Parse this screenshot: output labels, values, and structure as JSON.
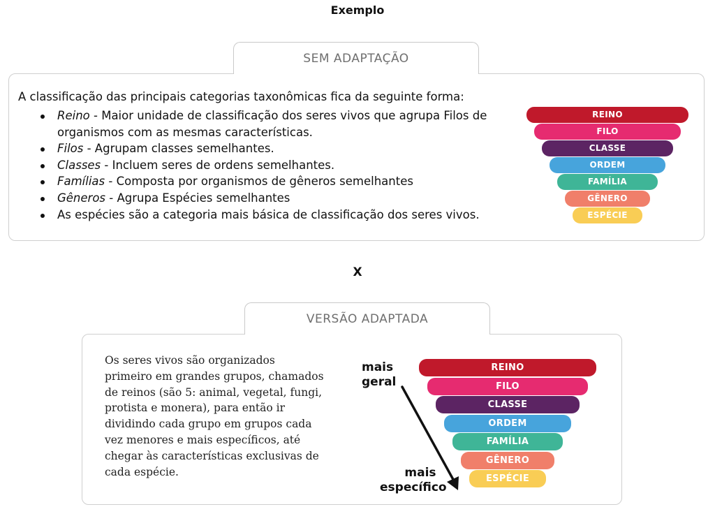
{
  "header": {
    "title": "Exemplo"
  },
  "original": {
    "tab_label": "SEM ADAPTAÇÃO",
    "intro": "A classificação das principais categorias taxonômicas fica da seguinte forma:",
    "items": [
      {
        "term": "Reino",
        "text": " - Maior unidade de classificação dos seres vivos que agrupa Filos de organismos com as mesmas características."
      },
      {
        "term": "Filos",
        "text": " - Agrupam classes semelhantes."
      },
      {
        "term": "Classes",
        "text": " - Incluem seres de ordens semelhantes."
      },
      {
        "term": "Famílias",
        "text": " - Composta por organismos de gêneros semelhantes"
      },
      {
        "term": "Gêneros",
        "text": " - Agrupa Espécies semelhantes"
      },
      {
        "term": "",
        "text": "As espécies são a categoria mais básica de classificação dos seres vivos."
      }
    ]
  },
  "separator": "X",
  "adapted": {
    "tab_label": "VERSÃO ADAPTADA",
    "description": "Os seres vivos são organizados primeiro em grandes grupos, chamados de reinos (são 5: animal, vegetal, fungi, protista e monera), para então ir dividindo cada grupo em grupos cada vez menores e mais específicos, até chegar às características exclusivas de cada espécie.",
    "top_label": [
      "mais",
      "geral"
    ],
    "bottom_label": [
      "mais",
      "específico"
    ]
  },
  "hierarchy": {
    "levels": [
      {
        "label": "REINO",
        "color": "#c0192b"
      },
      {
        "label": "FILO",
        "color": "#e62b70"
      },
      {
        "label": "CLASSE",
        "color": "#5c2463"
      },
      {
        "label": "ORDEM",
        "color": "#47a4dc"
      },
      {
        "label": "FAMÍLIA",
        "color": "#3fb597"
      },
      {
        "label": "GÊNERO",
        "color": "#f07f6a"
      },
      {
        "label": "ESPÉCIE",
        "color": "#f9cd55"
      }
    ]
  }
}
